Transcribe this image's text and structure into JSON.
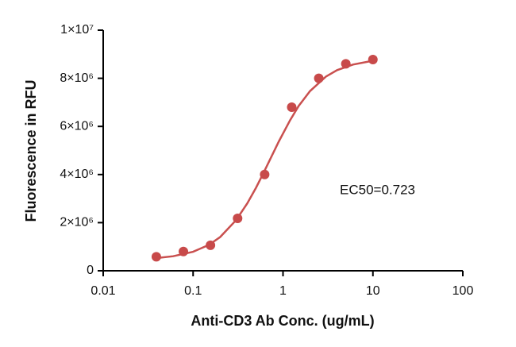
{
  "chart_data": {
    "type": "scatter",
    "x_label": "Anti-CD3 Ab Conc. (ug/mL)",
    "y_label": "Fluorescence in RFU",
    "annotation": "EC50=0.723",
    "x_log": true,
    "xlim": [
      0.01,
      100
    ],
    "xticks": [
      0.01,
      0.1,
      1,
      10,
      100
    ],
    "ylim": [
      0,
      10000000
    ],
    "yticks": [
      0,
      {
        "value": 2000000,
        "label": "2×10⁶"
      },
      {
        "value": 4000000,
        "label": "4×10⁶"
      },
      {
        "value": 6000000,
        "label": "6×10⁶"
      },
      {
        "value": 8000000,
        "label": "8×10⁶"
      },
      {
        "value": 10000000,
        "label": "1×10⁷"
      }
    ],
    "series": [
      {
        "type": "line",
        "color": "#c9504f",
        "x": [
          0.04,
          0.06,
          0.1,
          0.15,
          0.2,
          0.3,
          0.4,
          0.5,
          0.6,
          0.723,
          0.9,
          1.2,
          1.5,
          2,
          3,
          4,
          6,
          10
        ],
        "values": [
          531000,
          604000,
          790000,
          1077000,
          1402000,
          2101000,
          2798000,
          3445000,
          4028000,
          4650000,
          5380000,
          6260000,
          6860000,
          7470000,
          8070000,
          8340000,
          8570000,
          8730000
        ]
      },
      {
        "type": "scatter",
        "color": "#c84a4a",
        "x": [
          0.039,
          0.078,
          0.156,
          0.3125,
          0.625,
          1.25,
          2.5,
          5,
          10
        ],
        "values": [
          580000,
          800000,
          1060000,
          2180000,
          4000000,
          6800000,
          8000000,
          8600000,
          8780000
        ]
      }
    ]
  }
}
